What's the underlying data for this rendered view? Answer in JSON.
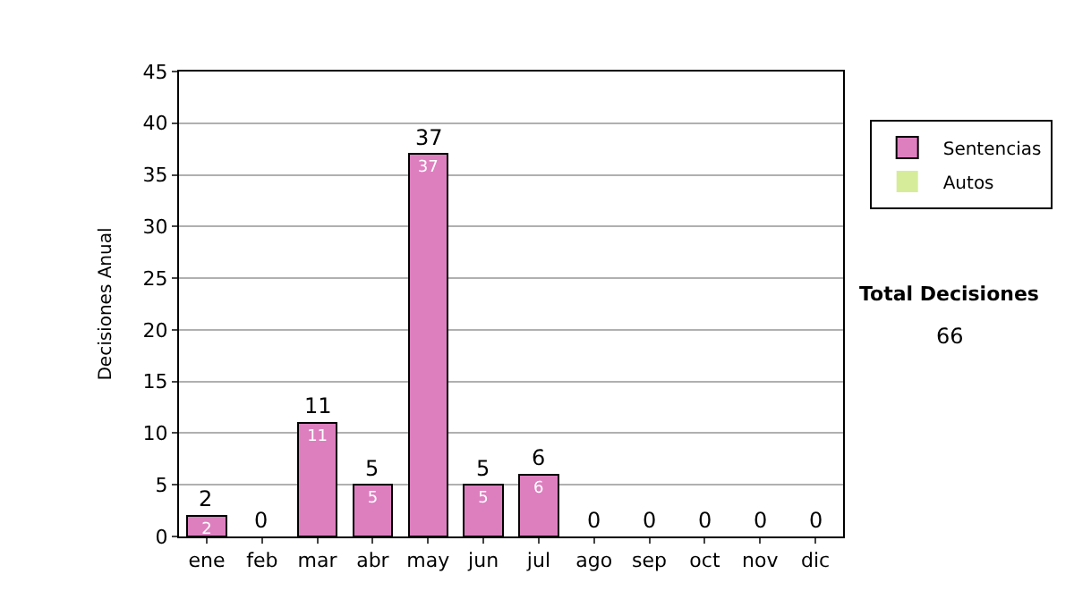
{
  "chart_data": {
    "type": "bar",
    "stacked": true,
    "ylabel": "Decisiones Anual",
    "categories": [
      "ene",
      "feb",
      "mar",
      "abr",
      "may",
      "jun",
      "jul",
      "ago",
      "sep",
      "oct",
      "nov",
      "dic"
    ],
    "series": [
      {
        "name": "Sentencias",
        "color": "#dd7fbf",
        "values": [
          2,
          0,
          11,
          5,
          37,
          5,
          6,
          0,
          0,
          0,
          0,
          0
        ],
        "value_labels": [
          "2",
          null,
          "11",
          "5",
          "37",
          "5",
          "6",
          null,
          null,
          null,
          null,
          null
        ]
      },
      {
        "name": "Autos",
        "color": "#d6ec9a",
        "values": [
          0,
          0,
          0,
          0,
          0,
          0,
          0,
          0,
          0,
          0,
          0,
          0
        ]
      }
    ],
    "totals": [
      "2",
      "0",
      "11",
      "5",
      "37",
      "5",
      "6",
      "0",
      "0",
      "0",
      "0",
      "0"
    ],
    "ylim": [
      0,
      45
    ],
    "yticks": [
      0,
      5,
      10,
      15,
      20,
      25,
      30,
      35,
      40,
      45
    ],
    "grid": "y",
    "legend": "right",
    "annotations": [
      "Total Decisiones",
      "66"
    ]
  }
}
